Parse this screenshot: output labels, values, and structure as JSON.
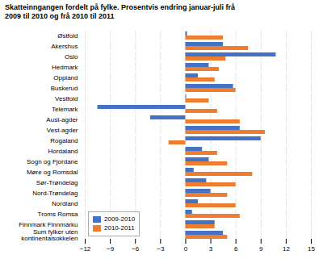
{
  "chart_data": {
    "type": "bar",
    "orientation": "horizontal",
    "title": "Skatteinngangen fordelt på fylke. Prosentvis endring januar-juli frå\n2009 til 2010 og frå 2010 til 2011",
    "categories": [
      "Østfold",
      "Akershus",
      "Oslo",
      "Hedmark",
      "Oppland",
      "Buskerud",
      "Vestfold",
      "Telemark",
      "Aust-agder",
      "Vest-agder",
      "Rogaland",
      "Hordaland",
      "Sogn og Fjordane",
      "Møre og Romsdal",
      "Sør-Trøndelag",
      "Nord-Trøndelag",
      "Nordland",
      "Troms Romsa",
      "Finnmark Finnmárku",
      "Sum fylker uten\nkontinentalsokkelen"
    ],
    "series": [
      {
        "name": "2009-2010",
        "color": "#4472c4",
        "values": [
          0.2,
          4.5,
          10.8,
          2.8,
          1.5,
          5.7,
          0.1,
          -10.5,
          -4.2,
          6.5,
          9.0,
          2.0,
          2.8,
          1.0,
          2.5,
          3.0,
          1.5,
          0.8,
          3.5,
          4.5
        ]
      },
      {
        "name": "2010-2011",
        "color": "#ed7d31",
        "values": [
          4.5,
          7.5,
          4.8,
          4.0,
          3.5,
          6.0,
          2.8,
          3.8,
          6.5,
          9.5,
          -2.0,
          3.8,
          5.0,
          8.0,
          6.0,
          5.0,
          6.0,
          6.5,
          3.5,
          5.0
        ]
      }
    ],
    "xlim": [
      -12,
      15
    ],
    "xticks": [
      -12,
      -9,
      -6,
      -3,
      0,
      3,
      6,
      9,
      12,
      15
    ],
    "grid": true,
    "legend": "lower left"
  }
}
